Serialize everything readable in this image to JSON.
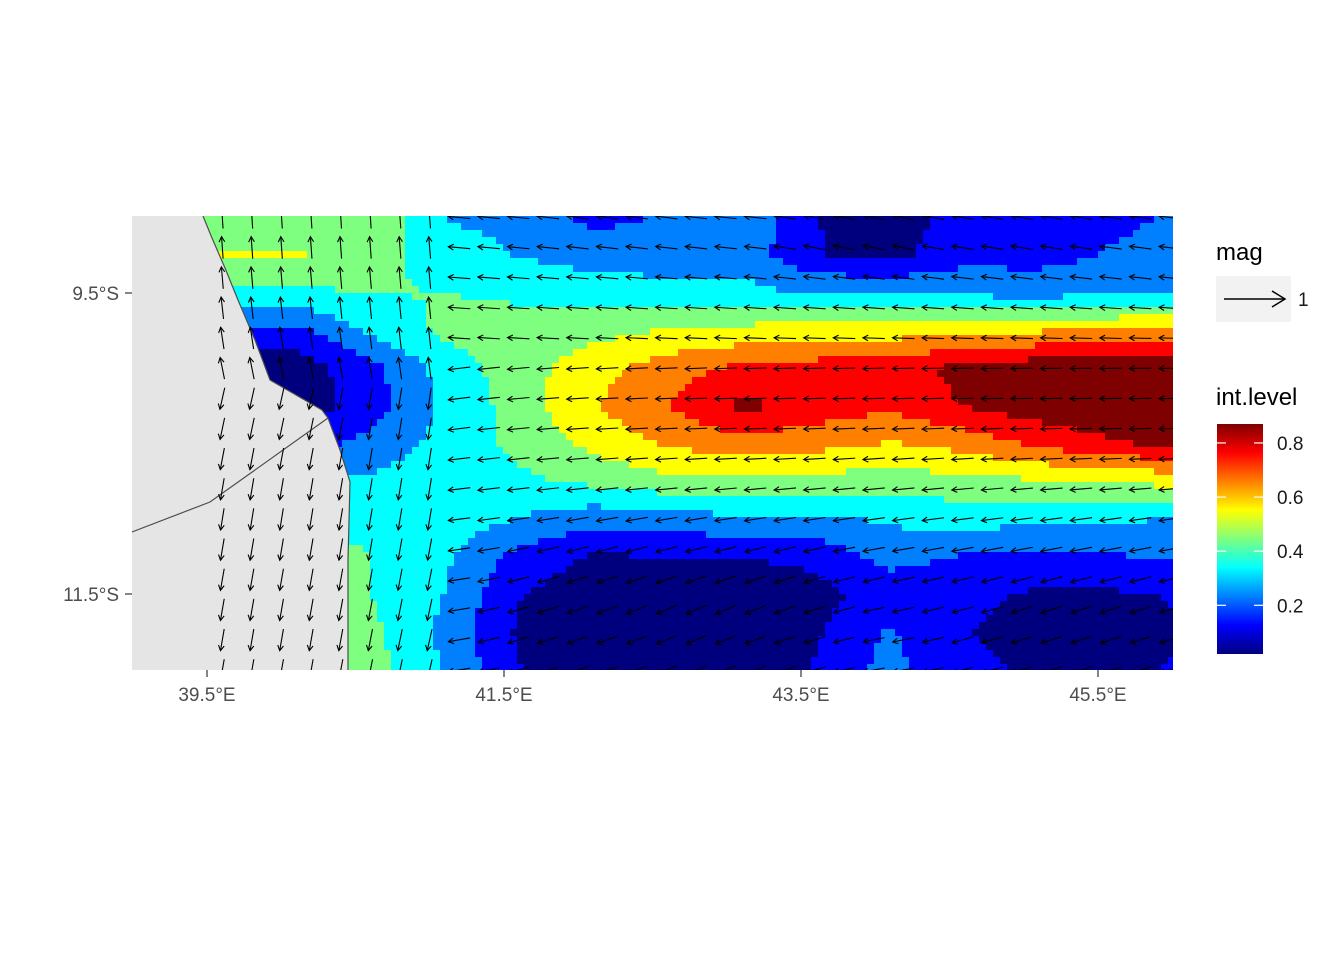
{
  "chart_data": {
    "type": "heatmap",
    "title": "",
    "xlabel": "",
    "ylabel": "",
    "xlim": [
      38.99,
      46.02
    ],
    "ylim": [
      -12.25,
      -9.24
    ],
    "x_ticks": [
      39.5,
      41.5,
      43.5,
      45.5
    ],
    "x_tick_labels": [
      "39.5°E",
      "41.5°E",
      "43.5°E",
      "45.5°E"
    ],
    "y_ticks": [
      -9.5,
      -11.5
    ],
    "y_tick_labels": [
      "9.5°S",
      "11.5°S"
    ],
    "grid": false,
    "land_color": "#e5e5e5",
    "coastline_color": "#4d4d4d",
    "arrow_color": "#000000",
    "fill_variable": "int.level",
    "fill_range": [
      0.02,
      0.87
    ],
    "fill_colorbar_ticks": [
      0.2,
      0.4,
      0.6,
      0.8
    ],
    "fill_colorbar_tick_labels": [
      "0.2",
      "0.4",
      "0.6",
      "0.8"
    ],
    "fill_colors": [
      "#00007f",
      "#0000ff",
      "#007fff",
      "#00ffff",
      "#7fff7f",
      "#ffff00",
      "#ff7f00",
      "#ff0000",
      "#7f0000"
    ],
    "grid_x": [
      40.1,
      40.6,
      41.1,
      41.6,
      42.1,
      42.6,
      43.1,
      43.6,
      44.1,
      44.6,
      45.1,
      45.6,
      46.0
    ],
    "grid_y": [
      -9.25,
      -9.5,
      -9.75,
      -10.0,
      -10.25,
      -10.5,
      -10.75,
      -11.0,
      -11.25,
      -11.5,
      -11.75,
      -12.0,
      -12.25
    ],
    "int_level": [
      [
        0.45,
        0.48,
        0.3,
        0.28,
        0.18,
        0.22,
        0.3,
        0.12,
        0.05,
        0.16,
        0.12,
        0.18,
        0.22
      ],
      [
        0.5,
        0.45,
        0.34,
        0.3,
        0.26,
        0.25,
        0.27,
        0.12,
        0.08,
        0.18,
        0.17,
        0.22,
        0.25
      ],
      [
        0.38,
        0.4,
        0.4,
        0.38,
        0.36,
        0.34,
        0.33,
        0.3,
        0.3,
        0.28,
        0.27,
        0.28,
        0.3
      ],
      [
        0.18,
        0.32,
        0.42,
        0.44,
        0.46,
        0.5,
        0.52,
        0.55,
        0.54,
        0.56,
        0.58,
        0.6,
        0.62
      ],
      [
        0.06,
        0.18,
        0.34,
        0.45,
        0.55,
        0.64,
        0.7,
        0.72,
        0.74,
        0.8,
        0.84,
        0.86,
        0.87
      ],
      [
        0.05,
        0.16,
        0.32,
        0.44,
        0.58,
        0.68,
        0.8,
        0.74,
        0.7,
        0.78,
        0.83,
        0.86,
        0.87
      ],
      [
        0.15,
        0.24,
        0.34,
        0.42,
        0.52,
        0.6,
        0.64,
        0.62,
        0.58,
        0.62,
        0.7,
        0.76,
        0.8
      ],
      [
        0.3,
        0.32,
        0.36,
        0.38,
        0.42,
        0.46,
        0.48,
        0.46,
        0.44,
        0.46,
        0.48,
        0.5,
        0.52
      ],
      [
        0.4,
        0.38,
        0.36,
        0.3,
        0.24,
        0.26,
        0.28,
        0.28,
        0.32,
        0.34,
        0.33,
        0.32,
        0.3
      ],
      [
        0.42,
        0.4,
        0.32,
        0.18,
        0.1,
        0.12,
        0.12,
        0.14,
        0.24,
        0.2,
        0.18,
        0.2,
        0.22
      ],
      [
        0.44,
        0.4,
        0.3,
        0.12,
        0.06,
        0.03,
        0.02,
        0.08,
        0.16,
        0.14,
        0.1,
        0.1,
        0.12
      ],
      [
        0.52,
        0.42,
        0.28,
        0.1,
        0.06,
        0.02,
        0.02,
        0.1,
        0.22,
        0.12,
        0.08,
        0.08,
        0.1
      ],
      [
        0.55,
        0.44,
        0.3,
        0.12,
        0.08,
        0.04,
        0.04,
        0.12,
        0.24,
        0.14,
        0.1,
        0.1,
        0.12
      ]
    ],
    "vector_field": {
      "x": [
        39.6,
        39.8,
        40.0,
        40.2,
        40.4,
        40.6,
        40.8,
        41.0,
        41.2,
        41.4,
        41.6,
        41.8,
        42.0,
        42.2,
        42.4,
        42.6,
        42.8,
        43.0,
        43.2,
        43.4,
        43.6,
        43.8,
        44.0,
        44.2,
        44.4,
        44.6,
        44.8,
        45.0,
        45.2,
        45.4,
        45.6,
        45.8,
        46.0
      ],
      "y": [
        -9.25,
        -9.45,
        -9.65,
        -9.85,
        -10.05,
        -10.25,
        -10.45,
        -10.65,
        -10.85,
        -11.05,
        -11.25,
        -11.45,
        -11.65,
        -11.85,
        -12.05,
        -12.25
      ],
      "units": "mag"
    },
    "legends": [
      {
        "title": "mag",
        "type": "arrow",
        "labels": [
          "1"
        ]
      },
      {
        "title": "int.level",
        "type": "colorbar",
        "labels": [
          "0.2",
          "0.4",
          "0.6",
          "0.8"
        ]
      }
    ]
  }
}
